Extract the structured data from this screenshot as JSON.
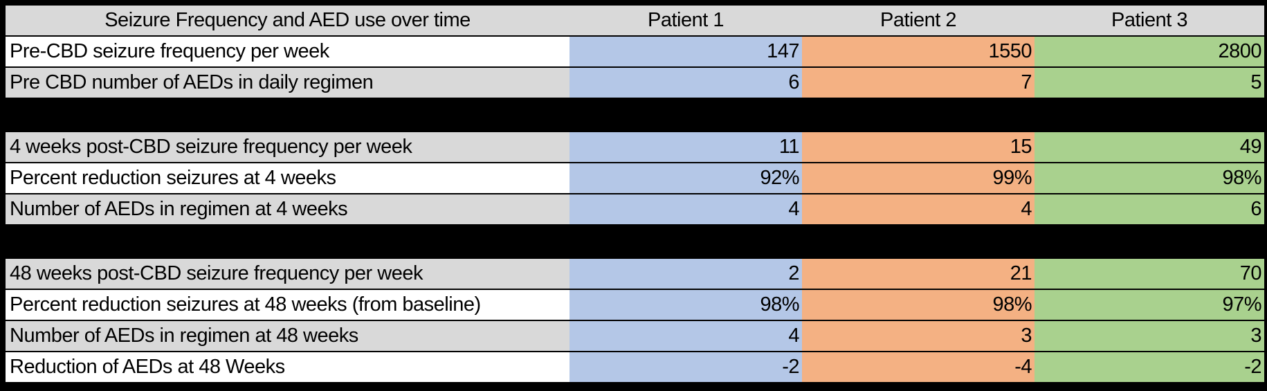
{
  "chart_data": {
    "type": "table",
    "title": "Seizure Frequency and AED use over time",
    "columns": [
      "Patient 1",
      "Patient 2",
      "Patient 3"
    ],
    "sections": [
      {
        "rows": [
          {
            "label": "Pre-CBD seizure frequency per week",
            "shade": "light",
            "values": [
              "147",
              "1550",
              "2800"
            ]
          },
          {
            "label": "Pre CBD number of AEDs in daily regimen",
            "shade": "dark",
            "values": [
              "6",
              "7",
              "5"
            ]
          }
        ]
      },
      {
        "rows": [
          {
            "label": "4 weeks post-CBD seizure frequency per week",
            "shade": "dark",
            "values": [
              "11",
              "15",
              "49"
            ]
          },
          {
            "label": "Percent reduction seizures at 4 weeks",
            "shade": "light",
            "values": [
              "92%",
              "99%",
              "98%"
            ]
          },
          {
            "label": "Number of AEDs in regimen at 4 weeks",
            "shade": "dark",
            "values": [
              "4",
              "4",
              "6"
            ]
          }
        ]
      },
      {
        "rows": [
          {
            "label": "48 weeks post-CBD seizure frequency per week",
            "shade": "dark",
            "values": [
              "2",
              "21",
              "70"
            ]
          },
          {
            "label": "Percent reduction seizures at 48 weeks (from baseline)",
            "shade": "light",
            "values": [
              "98%",
              "98%",
              "97%"
            ]
          },
          {
            "label": "Number of AEDs in regimen at 48 weeks",
            "shade": "dark",
            "values": [
              "4",
              "3",
              "3"
            ]
          },
          {
            "label": "Reduction of AEDs at 48 Weeks",
            "shade": "light",
            "values": [
              "-2",
              "-4",
              "-2"
            ]
          }
        ]
      }
    ]
  },
  "colors": {
    "patient_columns": [
      "#b4c7e7",
      "#f4b183",
      "#a9d18e"
    ],
    "header_bg": "#d9d9d9",
    "row_light": "#ffffff",
    "row_dark": "#d9d9d9",
    "grid": "#000000",
    "text": "#000000"
  }
}
